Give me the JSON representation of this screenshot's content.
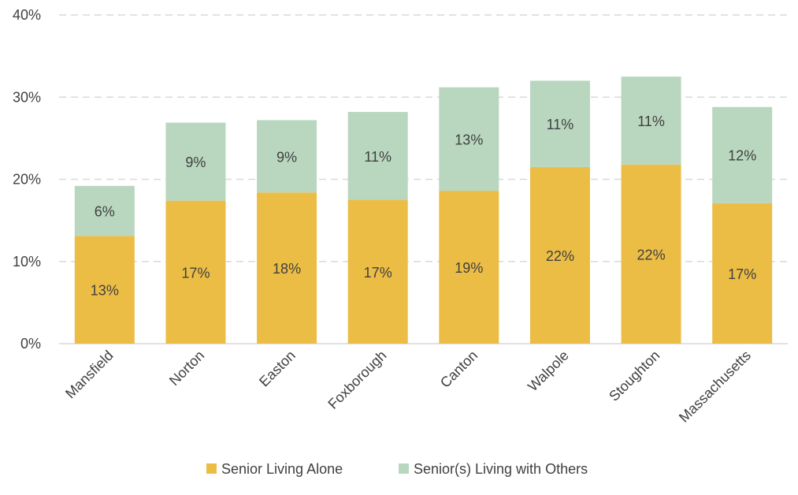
{
  "chart_data": {
    "type": "bar",
    "stacked": true,
    "categories": [
      "Mansfield",
      "Norton",
      "Easton",
      "Foxborough",
      "Canton",
      "Walpole",
      "Stoughton",
      "Massachusetts"
    ],
    "series": [
      {
        "name": "Senior Living Alone",
        "color": "#EBBD45",
        "values": [
          13.1,
          17.4,
          18.4,
          17.5,
          18.6,
          21.5,
          21.8,
          17.1
        ],
        "labels": [
          "13%",
          "17%",
          "18%",
          "17%",
          "19%",
          "22%",
          "22%",
          "17%"
        ]
      },
      {
        "name": "Senior(s) Living with Others",
        "color": "#B9D7BF",
        "values": [
          6.1,
          9.5,
          8.8,
          10.7,
          12.6,
          10.5,
          10.7,
          11.7
        ],
        "labels": [
          "6%",
          "9%",
          "9%",
          "11%",
          "13%",
          "11%",
          "11%",
          "12%"
        ]
      }
    ],
    "y_ticks": [
      "0%",
      "10%",
      "20%",
      "30%",
      "40%"
    ],
    "ylim": [
      0,
      40
    ],
    "grid": true,
    "legend": "bottom"
  }
}
